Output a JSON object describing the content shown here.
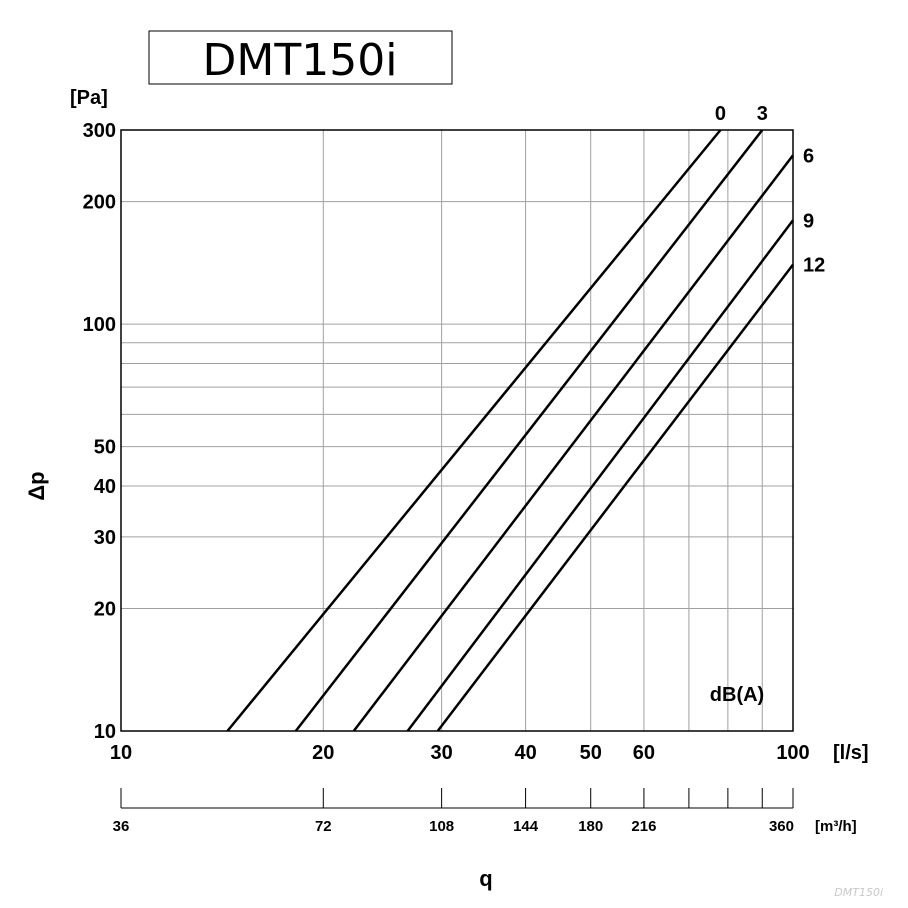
{
  "title": "DMT150i",
  "watermark": "DMT150i",
  "chart_data": {
    "type": "line",
    "log_scale": {
      "x": true,
      "y": true
    },
    "grid": true,
    "xlim": [
      10,
      100
    ],
    "ylim": [
      10,
      300
    ],
    "y_unit": "[Pa]",
    "ylabel": "Δp",
    "x_unit": "[l/s]",
    "xlabel": "q",
    "x_ticks": [
      "10",
      "20",
      "30",
      "40",
      "50",
      "60",
      "100"
    ],
    "x_tick_values": [
      10,
      20,
      30,
      40,
      50,
      60,
      100
    ],
    "x_minor_grid": [
      70,
      80,
      90
    ],
    "y_ticks": [
      "10",
      "20",
      "30",
      "40",
      "50",
      "100",
      "200",
      "300"
    ],
    "y_tick_values": [
      10,
      20,
      30,
      40,
      50,
      100,
      200,
      300
    ],
    "y_minor_grid": [
      60,
      70,
      80,
      90
    ],
    "secondary_x_unit": "[m³/h]",
    "secondary_x_ticks": [
      "36",
      "72",
      "108",
      "144",
      "180",
      "216",
      "360"
    ],
    "secondary_x_tick_positions_ls": [
      10,
      20,
      30,
      40,
      50,
      60,
      100
    ],
    "secondary_x_minor_ls": [
      70,
      80,
      90
    ],
    "legend_title": "dB(A)",
    "series": [
      {
        "name": "0",
        "points": [
          [
            14.4,
            10
          ],
          [
            78,
            300
          ]
        ]
      },
      {
        "name": "3",
        "points": [
          [
            18.2,
            10
          ],
          [
            90,
            300
          ]
        ]
      },
      {
        "name": "6",
        "points": [
          [
            22.2,
            10
          ],
          [
            100,
            260
          ]
        ]
      },
      {
        "name": "9",
        "points": [
          [
            26.7,
            10
          ],
          [
            100,
            180
          ]
        ]
      },
      {
        "name": "12",
        "points": [
          [
            29.6,
            10
          ],
          [
            100,
            140
          ]
        ]
      }
    ]
  }
}
